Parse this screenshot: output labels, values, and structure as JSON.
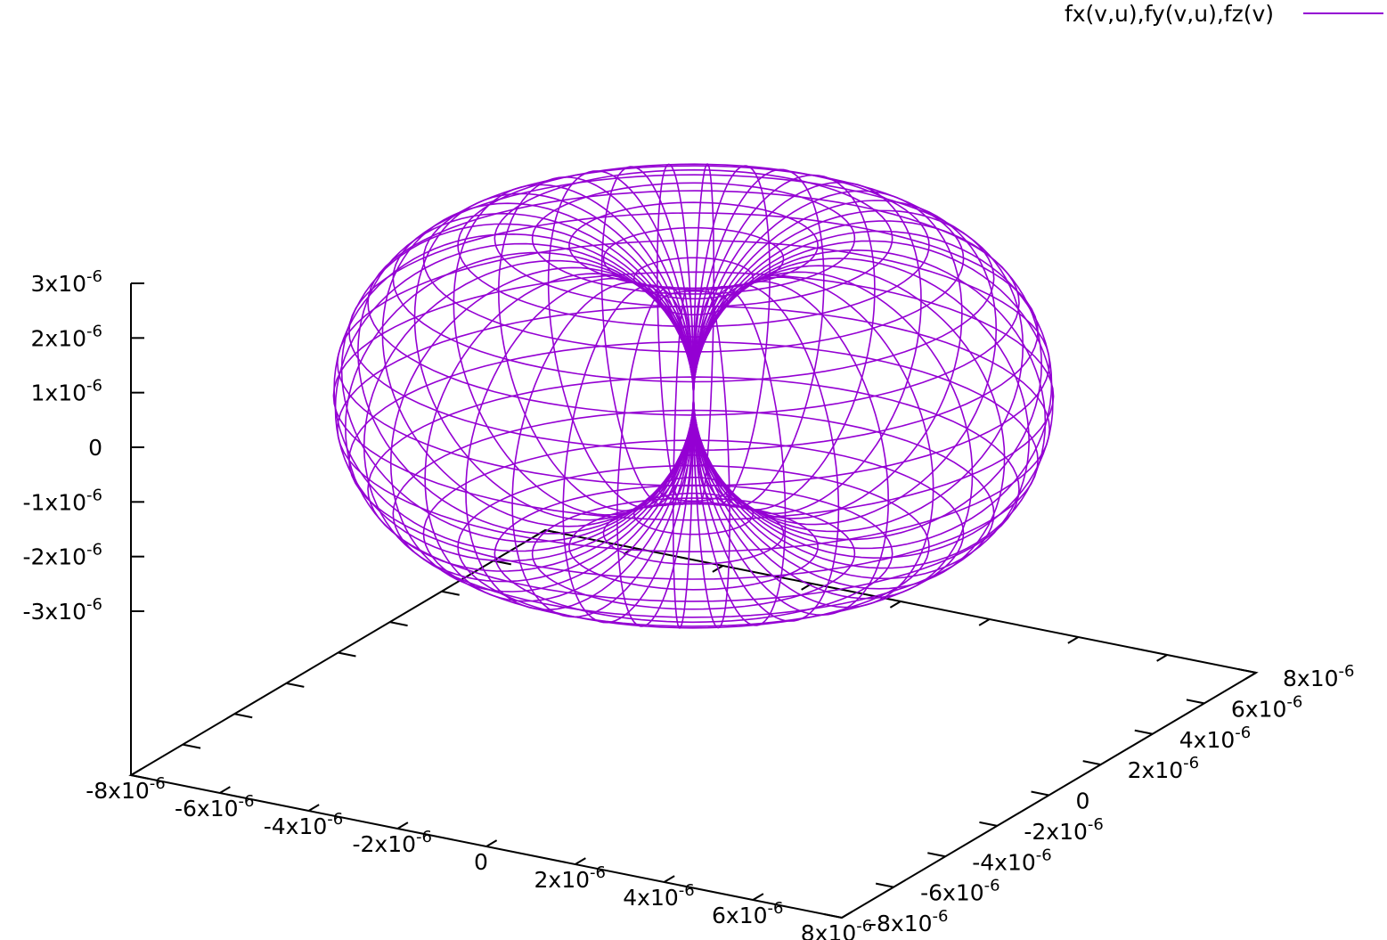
{
  "chart_data": {
    "type": "surface",
    "series": [
      {
        "name": "fx(v,u),fy(v,u),fz(v)",
        "color": "#9400d3",
        "surface": {
          "ring_radius": 3.5e-06,
          "tube_radius": 3.5e-06,
          "height_radius": 2.9e-06,
          "u_lines": 40,
          "v_lines": 30
        }
      }
    ],
    "xlim": [
      -8e-06,
      8e-06
    ],
    "ylim": [
      -8e-06,
      8e-06
    ],
    "zlim": [
      -3e-06,
      3e-06
    ],
    "ticslevel": 0.5,
    "xticks": [
      {
        "value": -8e-06,
        "label": "-8x10",
        "exponent": "-6"
      },
      {
        "value": -6e-06,
        "label": "-6x10",
        "exponent": "-6"
      },
      {
        "value": -4e-06,
        "label": "-4x10",
        "exponent": "-6"
      },
      {
        "value": -2e-06,
        "label": "-2x10",
        "exponent": "-6"
      },
      0,
      {
        "value": 2e-06,
        "label": "2x10",
        "exponent": "-6"
      },
      {
        "value": 4e-06,
        "label": "4x10",
        "exponent": "-6"
      },
      {
        "value": 6e-06,
        "label": "6x10",
        "exponent": "-6"
      },
      {
        "value": 8e-06,
        "label": "8x10",
        "exponent": "-6"
      }
    ],
    "yticks": [
      {
        "value": -8e-06,
        "label": "-8x10",
        "exponent": "-6"
      },
      {
        "value": -6e-06,
        "label": "-6x10",
        "exponent": "-6"
      },
      {
        "value": -4e-06,
        "label": "-4x10",
        "exponent": "-6"
      },
      {
        "value": -2e-06,
        "label": "-2x10",
        "exponent": "-6"
      },
      0,
      {
        "value": 2e-06,
        "label": "2x10",
        "exponent": "-6"
      },
      {
        "value": 4e-06,
        "label": "4x10",
        "exponent": "-6"
      },
      {
        "value": 6e-06,
        "label": "6x10",
        "exponent": "-6"
      },
      {
        "value": 8e-06,
        "label": "8x10",
        "exponent": "-6"
      }
    ],
    "zticks": [
      {
        "value": -3e-06,
        "label": "-3x10",
        "exponent": "-6"
      },
      {
        "value": -2e-06,
        "label": "-2x10",
        "exponent": "-6"
      },
      {
        "value": -1e-06,
        "label": "-1x10",
        "exponent": "-6"
      },
      0,
      {
        "value": 1e-06,
        "label": "1x10",
        "exponent": "-6"
      },
      {
        "value": 2e-06,
        "label": "2x10",
        "exponent": "-6"
      },
      {
        "value": 3e-06,
        "label": "3x10",
        "exponent": "-6"
      }
    ]
  }
}
